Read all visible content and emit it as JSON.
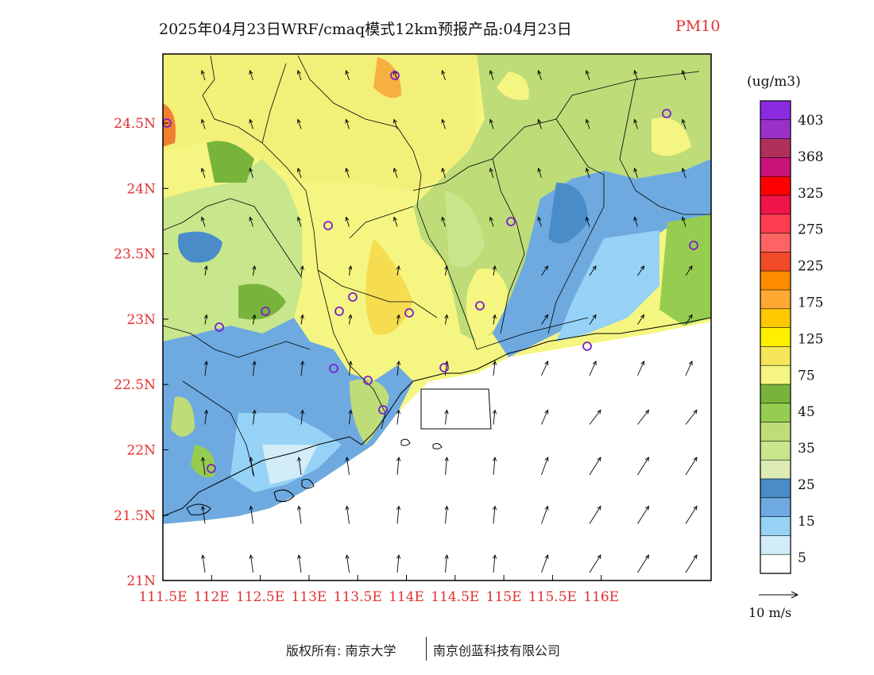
{
  "title": {
    "main": "2025年04月23日WRF/cmaq模式12km预报产品:04月23日",
    "variable": "PM10"
  },
  "map": {
    "lon_labels": [
      "111.5E",
      "112E",
      "112.5E",
      "113E",
      "113.5E",
      "114E",
      "114.5E",
      "115E",
      "115.5E",
      "116E"
    ],
    "lat_labels": [
      "24.5N",
      "24N",
      "23.5N",
      "23N",
      "22.5N",
      "22N",
      "21.5N",
      "21N"
    ],
    "label_color": "#e03030"
  },
  "legend": {
    "unit": "(ug/m3)",
    "labels": [
      "403",
      "368",
      "325",
      "275",
      "225",
      "175",
      "125",
      "75",
      "45",
      "35",
      "25",
      "15",
      "5"
    ],
    "colors_top_to_bottom": [
      "#8a2be2",
      "#9b30c8",
      "#b0305a",
      "#c8147a",
      "#ff0000",
      "#f0144a",
      "#ff3c50",
      "#ff6464",
      "#f04a28",
      "#ff8c00",
      "#ffa832",
      "#ffc800",
      "#fff000",
      "#f5e65a",
      "#f5f582",
      "#78b43c",
      "#96cd50",
      "#bedc78",
      "#c8e68c",
      "#dcecb4",
      "#4a8cc8",
      "#6eaae0",
      "#96d2f5",
      "#d2ecf8",
      "#ffffff"
    ]
  },
  "wind_legend": {
    "label": "10 m/s"
  },
  "footer": {
    "copyright": "版权所有: 南京大学",
    "company": "南京创蓝科技有限公司"
  }
}
